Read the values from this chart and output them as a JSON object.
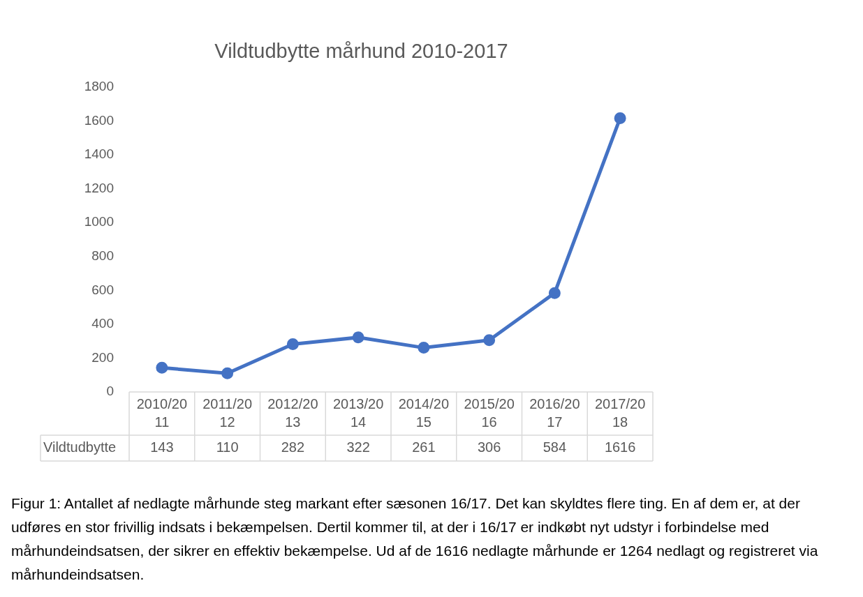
{
  "chart_data": {
    "type": "line",
    "title": "Vildtudbytte mårhund 2010-2017",
    "categories": [
      "2010/2011",
      "2011/2012",
      "2012/2013",
      "2013/2014",
      "2014/2015",
      "2015/2016",
      "2016/2017",
      "2017/2018"
    ],
    "series": [
      {
        "name": "Vildtudbytte",
        "color": "#4472c4",
        "values": [
          143,
          110,
          282,
          322,
          261,
          306,
          584,
          1616
        ]
      }
    ],
    "ylim": [
      0,
      1800
    ],
    "yticks": [
      0,
      200,
      400,
      600,
      800,
      1000,
      1200,
      1400,
      1600,
      1800
    ],
    "grid": false,
    "marker": "circle",
    "data_labels": true,
    "annotations": [
      "Figur 1: Antallet af nedlagte mårhunde steg markant efter sæsonen 16/17. Det kan skyldtes flere ting. En af dem er, at der udføres en stor frivillig indsats i bekæmpelsen. Dertil kommer til, at der i 16/17 er indkøbt nyt udstyr i forbindelse med mårhundeindsatsen, der sikrer en effektiv bekæmpelse. Ud af de 1616 nedlagte mårhunde er 1264 nedlagt og registreret via mårhundeindsatsen."
    ]
  }
}
